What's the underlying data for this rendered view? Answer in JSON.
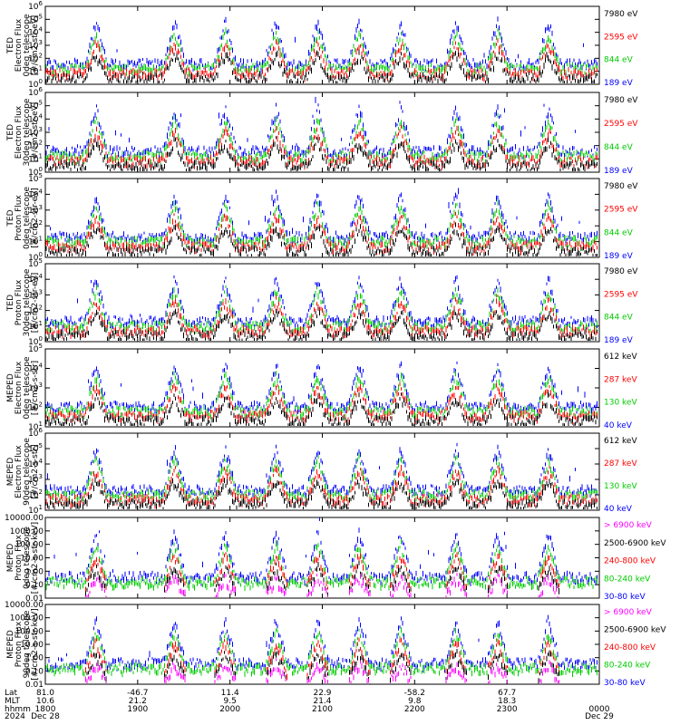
{
  "chart_data": [
    {
      "type": "line",
      "ylabel": [
        "TED",
        "Electron Flux",
        "0deg telescope",
        "[#/cm2-str-eV]"
      ],
      "y_log": true,
      "ylim": [
        1,
        1000000
      ],
      "y_tick_labels": [
        "10^0",
        "10^1",
        "10^2",
        "10^3",
        "10^4",
        "10^5",
        "10^6"
      ],
      "series": [
        {
          "name": "7980 eV",
          "color": "#000000"
        },
        {
          "name": "2595 eV",
          "color": "#ff0000"
        },
        {
          "name": "844 eV",
          "color": "#00cc00"
        },
        {
          "name": "189 eV",
          "color": "#0000ff"
        }
      ]
    },
    {
      "type": "line",
      "ylabel": [
        "TED",
        "Electron Flux",
        "30deg telescope",
        "[#/cm2-str-eV]"
      ],
      "y_log": true,
      "ylim": [
        1,
        1000000
      ],
      "y_tick_labels": [
        "10^0",
        "10^1",
        "10^2",
        "10^3",
        "10^4",
        "10^5",
        "10^6"
      ],
      "series": [
        {
          "name": "7980 eV",
          "color": "#000000"
        },
        {
          "name": "2595 eV",
          "color": "#ff0000"
        },
        {
          "name": "844 eV",
          "color": "#00cc00"
        },
        {
          "name": "189 eV",
          "color": "#0000ff"
        }
      ]
    },
    {
      "type": "line",
      "ylabel": [
        "TED",
        "Proton Flux",
        "0deg telescope",
        "[#/cm2-str-eV]"
      ],
      "y_log": true,
      "ylim": [
        1,
        100000
      ],
      "y_tick_labels": [
        "10^0",
        "10^1",
        "10^2",
        "10^3",
        "10^4",
        "10^5"
      ],
      "series": [
        {
          "name": "7980 eV",
          "color": "#000000"
        },
        {
          "name": "2595 eV",
          "color": "#ff0000"
        },
        {
          "name": "844 eV",
          "color": "#00cc00"
        },
        {
          "name": "189 eV",
          "color": "#0000ff"
        }
      ]
    },
    {
      "type": "line",
      "ylabel": [
        "TED",
        "Proton Flux",
        "30deg telescope",
        "[#/cm2-str-eV]"
      ],
      "y_log": true,
      "ylim": [
        1,
        100000
      ],
      "y_tick_labels": [
        "10^0",
        "10^1",
        "10^2",
        "10^3",
        "10^4",
        "10^5"
      ],
      "series": [
        {
          "name": "7980 eV",
          "color": "#000000"
        },
        {
          "name": "2595 eV",
          "color": "#ff0000"
        },
        {
          "name": "844 eV",
          "color": "#00cc00"
        },
        {
          "name": "189 eV",
          "color": "#0000ff"
        }
      ]
    },
    {
      "type": "line",
      "ylabel": [
        "MEPED",
        "Electron Flux",
        "0deg telescope",
        "[#/cm2-s-str]"
      ],
      "y_log": true,
      "ylim": [
        10,
        100000
      ],
      "y_tick_labels": [
        "10^1",
        "10^2",
        "10^3",
        "10^4",
        "10^5"
      ],
      "series": [
        {
          "name": "612 keV",
          "color": "#000000"
        },
        {
          "name": "287 keV",
          "color": "#ff0000"
        },
        {
          "name": "130 keV",
          "color": "#00cc00"
        },
        {
          "name": "40 keV",
          "color": "#0000ff"
        }
      ]
    },
    {
      "type": "line",
      "ylabel": [
        "MEPED",
        "Electron Flux",
        "90deg telescope",
        "[#/cm2-s-str]"
      ],
      "y_log": true,
      "ylim": [
        10,
        1000000
      ],
      "y_tick_labels": [
        "10^1",
        "10^2",
        "10^3",
        "10^4",
        "10^5",
        "10^6"
      ],
      "series": [
        {
          "name": "612 keV",
          "color": "#000000"
        },
        {
          "name": "287 keV",
          "color": "#ff0000"
        },
        {
          "name": "130 keV",
          "color": "#00cc00"
        },
        {
          "name": "40 keV",
          "color": "#0000ff"
        }
      ]
    },
    {
      "type": "line",
      "ylabel": [
        "MEPED",
        "Proton Flux",
        "0deg telescope",
        "[#/cm2-s-str-keV]"
      ],
      "y_log": true,
      "ylim": [
        0.01,
        10000
      ],
      "y_tick_labels": [
        "0.01",
        "0.10",
        "1.00",
        "10.00",
        "100.00",
        "1000.00",
        "10000.00"
      ],
      "series": [
        {
          "name": "> 6900 keV",
          "color": "#ff00ff"
        },
        {
          "name": "2500-6900 keV",
          "color": "#000000"
        },
        {
          "name": "240-800 keV",
          "color": "#ff0000"
        },
        {
          "name": "80-240 keV",
          "color": "#00cc00"
        },
        {
          "name": "30-80 keV",
          "color": "#0000ff"
        }
      ]
    },
    {
      "type": "line",
      "ylabel": [
        "MEPED",
        "Proton Flux",
        "90deg telescope",
        "[#/cm2-s-str-keV]"
      ],
      "y_log": true,
      "ylim": [
        0.01,
        10000
      ],
      "y_tick_labels": [
        "0.01",
        "0.10",
        "1.00",
        "10.00",
        "100.00",
        "1000.00",
        "10000.00"
      ],
      "series": [
        {
          "name": "> 6900 keV",
          "color": "#ff00ff"
        },
        {
          "name": "2500-6900 keV",
          "color": "#000000"
        },
        {
          "name": "240-800 keV",
          "color": "#ff0000"
        },
        {
          "name": "80-240 keV",
          "color": "#00cc00"
        },
        {
          "name": "30-80 keV",
          "color": "#0000ff"
        }
      ]
    }
  ],
  "x_axis": {
    "row_labels": [
      "Lat",
      "MLT",
      "hhmm",
      "2024"
    ],
    "xlim_hours": [
      18,
      24
    ],
    "columns": [
      {
        "x": 18.0,
        "lat": "81.0",
        "mlt": "10.6",
        "hhmm": "1800",
        "date": "Dec 28"
      },
      {
        "x": 19.0,
        "lat": "-46.7",
        "mlt": "21.2",
        "hhmm": "1900",
        "date": ""
      },
      {
        "x": 20.0,
        "lat": "11.4",
        "mlt": "9.5",
        "hhmm": "2000",
        "date": ""
      },
      {
        "x": 21.0,
        "lat": "22.9",
        "mlt": "21.4",
        "hhmm": "2100",
        "date": ""
      },
      {
        "x": 22.0,
        "lat": "-58.2",
        "mlt": "9.8",
        "hhmm": "2200",
        "date": ""
      },
      {
        "x": 23.0,
        "lat": "67.7",
        "mlt": "18.3",
        "hhmm": "2300",
        "date": ""
      },
      {
        "x": 24.0,
        "lat": "",
        "mlt": "",
        "hhmm": "0000",
        "date": "Dec 29"
      }
    ]
  }
}
